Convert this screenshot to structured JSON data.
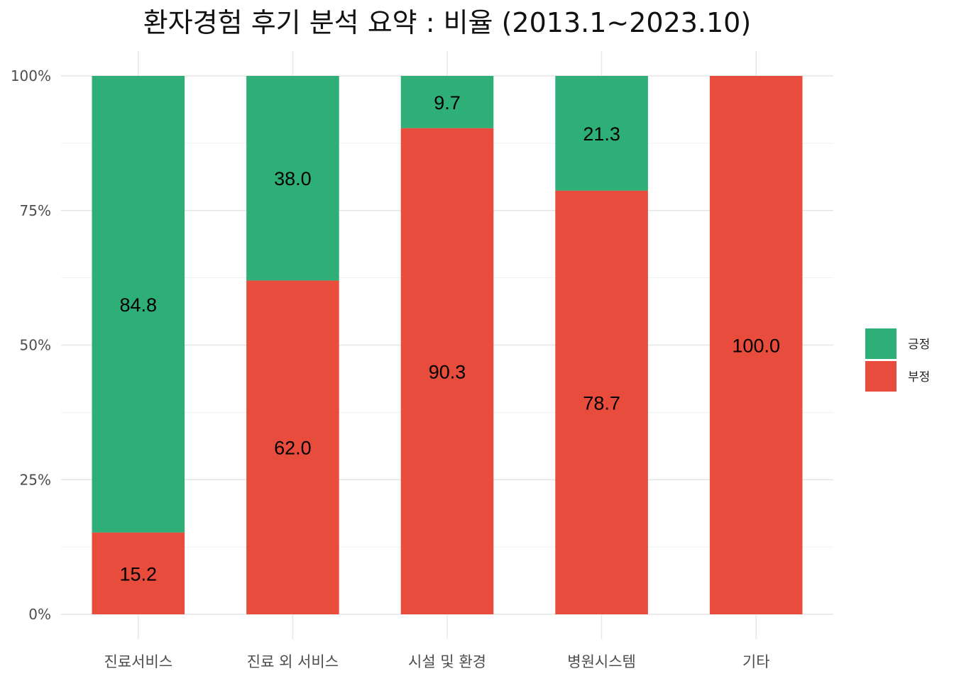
{
  "chart_data": {
    "type": "bar",
    "stacked": true,
    "percent": true,
    "title": "환자경험 후기 분석 요약 : 비율 (2013.1~2023.10)",
    "xlabel": "",
    "ylabel": "",
    "categories": [
      "진료서비스",
      "진료 외 서비스",
      "시설 및 환경",
      "병원시스템",
      "기타"
    ],
    "y_ticks": [
      "0%",
      "25%",
      "50%",
      "75%",
      "100%"
    ],
    "ylim": [
      0,
      100
    ],
    "series": [
      {
        "name": "부정",
        "color": "#E74C3C",
        "values": [
          15.2,
          62.0,
          90.3,
          78.7,
          100.0
        ],
        "labels": [
          "15.2",
          "62.0",
          "90.3",
          "78.7",
          "100.0"
        ]
      },
      {
        "name": "긍정",
        "color": "#2EAF78",
        "values": [
          84.8,
          38.0,
          9.7,
          21.3,
          0
        ],
        "labels": [
          "84.8",
          "38.0",
          "9.7",
          "21.3",
          ""
        ]
      }
    ],
    "legend_position": "right",
    "legend_order": [
      "긍정",
      "부정"
    ],
    "grid": true
  }
}
